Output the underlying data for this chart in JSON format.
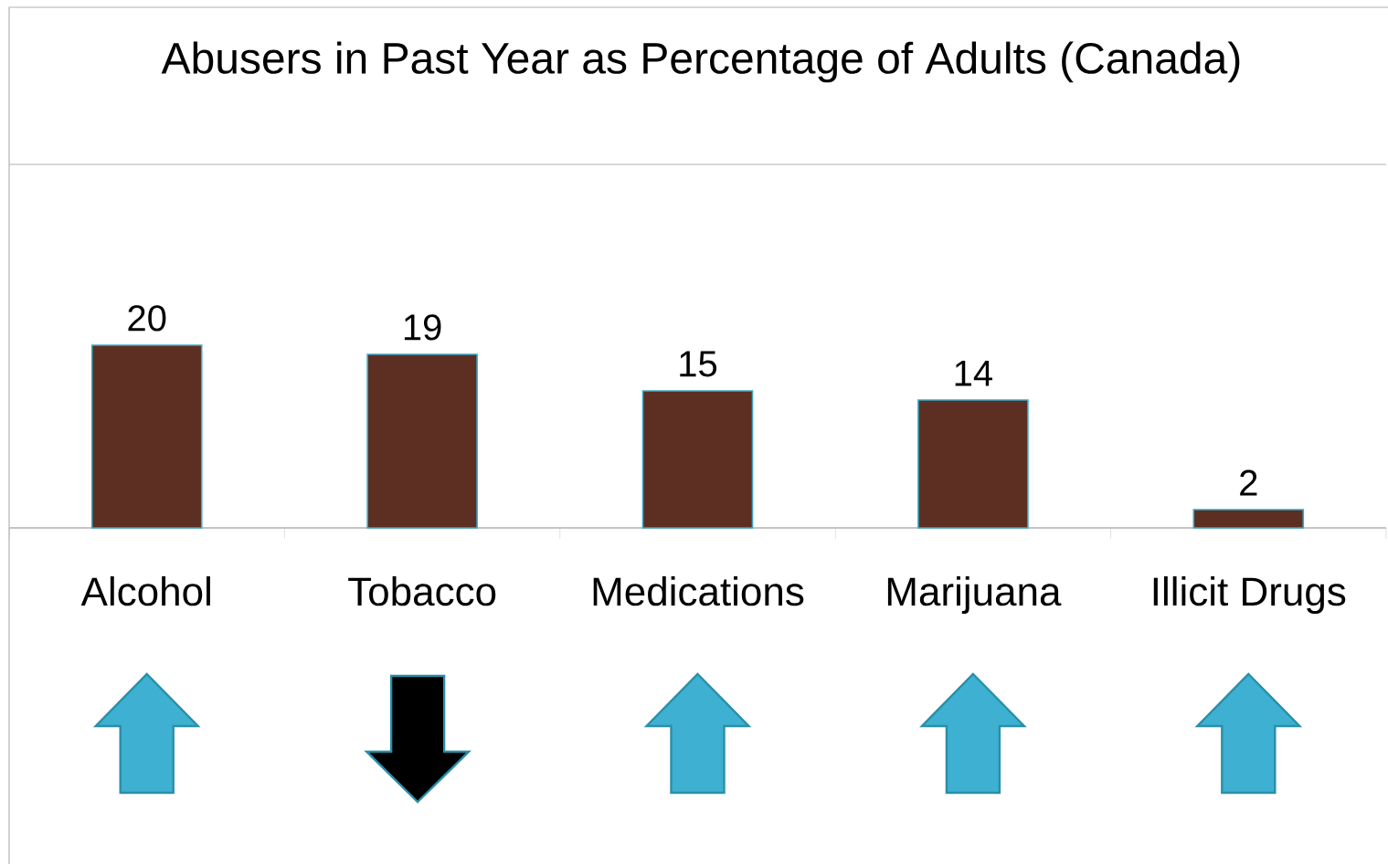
{
  "chart_data": {
    "type": "bar",
    "title": "Abusers in Past Year as Percentage of Adults (Canada)",
    "categories": [
      "Alcohol",
      "Tobacco",
      "Medications",
      "Marijuana",
      "Illicit Drugs"
    ],
    "values": [
      20,
      19,
      15,
      14,
      2
    ],
    "color": "#5c2f22",
    "data_labels": true
  }
}
